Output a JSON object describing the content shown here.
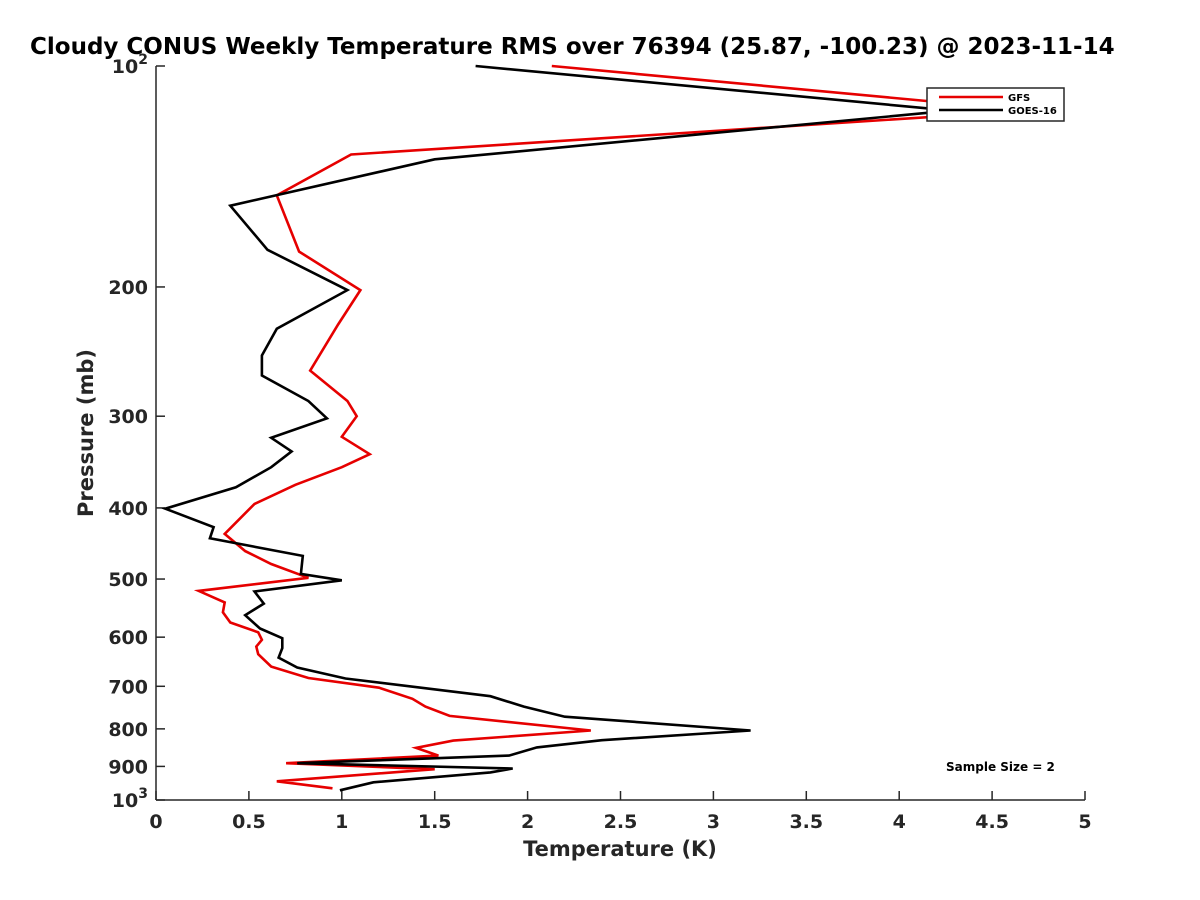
{
  "chart_data": {
    "type": "line",
    "title": "Cloudy CONUS Weekly Temperature RMS over 76394 (25.87, -100.23) @ 2023-11-14",
    "xlabel": "Temperature (K)",
    "ylabel": "Pressure (mb)",
    "xlim": [
      0,
      5
    ],
    "ylim": [
      100,
      1000
    ],
    "yscale": "log",
    "y_reversed": true,
    "xticks": [
      0,
      0.5,
      1,
      1.5,
      2,
      2.5,
      3,
      3.5,
      4,
      4.5,
      5
    ],
    "xtick_labels": [
      "0",
      "0.5",
      "1",
      "1.5",
      "2",
      "2.5",
      "3",
      "3.5",
      "4",
      "4.5",
      "5"
    ],
    "yticks": [
      100,
      200,
      300,
      400,
      500,
      600,
      700,
      800,
      900,
      1000
    ],
    "ytick_labels": [
      {
        "base": "10",
        "exp": "2"
      },
      {
        "base": "200",
        "exp": ""
      },
      {
        "base": "300",
        "exp": ""
      },
      {
        "base": "400",
        "exp": ""
      },
      {
        "base": "500",
        "exp": ""
      },
      {
        "base": "600",
        "exp": ""
      },
      {
        "base": "700",
        "exp": ""
      },
      {
        "base": "800",
        "exp": ""
      },
      {
        "base": "900",
        "exp": ""
      },
      {
        "base": "10",
        "exp": "3"
      }
    ],
    "grid": false,
    "legend_position": "top-right",
    "annotation": "Sample Size = 2",
    "series": [
      {
        "name": "GFS",
        "color": "#e60000",
        "points": [
          [
            2.13,
            100
          ],
          [
            4.7,
            115
          ],
          [
            1.05,
            132
          ],
          [
            0.65,
            150
          ],
          [
            0.77,
            179
          ],
          [
            1.1,
            202
          ],
          [
            0.98,
            225
          ],
          [
            0.83,
            260
          ],
          [
            1.03,
            286
          ],
          [
            1.08,
            300
          ],
          [
            1.0,
            320
          ],
          [
            1.15,
            338
          ],
          [
            1.0,
            352
          ],
          [
            0.75,
            372
          ],
          [
            0.53,
            395
          ],
          [
            0.37,
            434
          ],
          [
            0.48,
            458
          ],
          [
            0.62,
            477
          ],
          [
            0.82,
            498
          ],
          [
            0.23,
            519
          ],
          [
            0.37,
            538
          ],
          [
            0.36,
            555
          ],
          [
            0.4,
            573
          ],
          [
            0.55,
            591
          ],
          [
            0.57,
            605
          ],
          [
            0.54,
            618
          ],
          [
            0.55,
            633
          ],
          [
            0.62,
            658
          ],
          [
            0.82,
            682
          ],
          [
            1.2,
            703
          ],
          [
            1.38,
            728
          ],
          [
            1.45,
            746
          ],
          [
            1.58,
            768
          ],
          [
            2.34,
            804
          ],
          [
            1.6,
            830
          ],
          [
            1.4,
            849
          ],
          [
            1.52,
            870
          ],
          [
            0.7,
            891
          ],
          [
            1.5,
            908
          ],
          [
            0.65,
            943
          ],
          [
            0.95,
            964
          ]
        ]
      },
      {
        "name": "GOES-16",
        "color": "#000000",
        "points": [
          [
            1.72,
            100
          ],
          [
            4.28,
            115
          ],
          [
            1.5,
            134
          ],
          [
            0.4,
            155
          ],
          [
            0.6,
            178
          ],
          [
            1.03,
            202
          ],
          [
            0.65,
            228
          ],
          [
            0.57,
            248
          ],
          [
            0.57,
            264
          ],
          [
            0.82,
            286
          ],
          [
            0.92,
            302
          ],
          [
            0.62,
            321
          ],
          [
            0.73,
            335
          ],
          [
            0.62,
            352
          ],
          [
            0.43,
            375
          ],
          [
            0.05,
            401
          ],
          [
            0.31,
            425
          ],
          [
            0.29,
            440
          ],
          [
            0.79,
            465
          ],
          [
            0.78,
            492
          ],
          [
            1.0,
            502
          ],
          [
            0.53,
            520
          ],
          [
            0.58,
            540
          ],
          [
            0.48,
            560
          ],
          [
            0.56,
            584
          ],
          [
            0.68,
            602
          ],
          [
            0.68,
            621
          ],
          [
            0.66,
            640
          ],
          [
            0.76,
            660
          ],
          [
            1.02,
            683
          ],
          [
            1.8,
            722
          ],
          [
            1.98,
            746
          ],
          [
            2.2,
            770
          ],
          [
            3.2,
            804
          ],
          [
            2.4,
            829
          ],
          [
            2.05,
            848
          ],
          [
            1.9,
            870
          ],
          [
            0.76,
            891
          ],
          [
            1.92,
            906
          ],
          [
            1.8,
            917
          ],
          [
            1.17,
            946
          ],
          [
            0.99,
            970
          ]
        ]
      }
    ]
  }
}
